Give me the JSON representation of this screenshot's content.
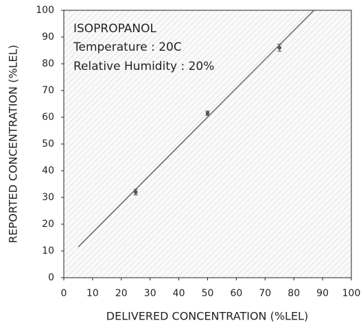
{
  "chart_data": {
    "type": "scatter",
    "xlabel": "DELIVERED CONCENTRATION (%LEL)",
    "ylabel": "REPORTED CONCENTRATION (%LEL)",
    "annotations": [
      "ISOPROPANOL",
      "Temperature : 20C",
      "Relative Humidity : 20%"
    ],
    "points": {
      "x": [
        25,
        50,
        75
      ],
      "values": [
        32,
        61.5,
        86
      ],
      "errors": [
        1,
        0.8,
        1.3
      ],
      "color": "#555555"
    },
    "fit_line": {
      "x": [
        5,
        87
      ],
      "values": [
        11.5,
        100
      ],
      "color": "#555555"
    },
    "xlim": [
      0,
      100
    ],
    "xticks": [
      0,
      10,
      20,
      30,
      40,
      50,
      60,
      70,
      80,
      90,
      100
    ],
    "ylim": [
      0,
      100
    ],
    "yticks": [
      0,
      10,
      20,
      30,
      40,
      50,
      60,
      70,
      80,
      90,
      100
    ],
    "grid": false
  }
}
